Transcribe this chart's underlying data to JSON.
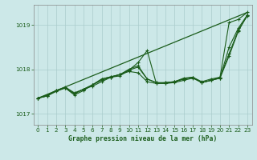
{
  "title": "Graphe pression niveau de la mer (hPa)",
  "background_color": "#cce8e8",
  "grid_color": "#aacccc",
  "line_color": "#1a5c1a",
  "xlim": [
    -0.5,
    23.5
  ],
  "ylim": [
    1016.75,
    1019.45
  ],
  "yticks": [
    1017,
    1018,
    1019
  ],
  "xticks": [
    0,
    1,
    2,
    3,
    4,
    5,
    6,
    7,
    8,
    9,
    10,
    11,
    12,
    13,
    14,
    15,
    16,
    17,
    18,
    19,
    20,
    21,
    22,
    23
  ],
  "straight_line": {
    "x": [
      0,
      23
    ],
    "y": [
      1017.35,
      1019.28
    ]
  },
  "series": [
    {
      "x": [
        0,
        1,
        2,
        3,
        4,
        5,
        6,
        7,
        8,
        9,
        10,
        11,
        12,
        13,
        14,
        15,
        16,
        17,
        18,
        19,
        20,
        21,
        22,
        23
      ],
      "y": [
        1017.35,
        1017.42,
        1017.52,
        1017.6,
        1017.47,
        1017.55,
        1017.65,
        1017.78,
        1017.83,
        1017.88,
        1018.0,
        1018.08,
        1017.78,
        1017.7,
        1017.7,
        1017.72,
        1017.78,
        1017.82,
        1017.72,
        1017.78,
        1017.82,
        1019.05,
        1019.12,
        1019.28
      ]
    },
    {
      "x": [
        0,
        1,
        2,
        3,
        4,
        5,
        6,
        7,
        8,
        9,
        10,
        11,
        12,
        13,
        14,
        15,
        16,
        17,
        18,
        19,
        20,
        21,
        22,
        23
      ],
      "y": [
        1017.35,
        1017.4,
        1017.5,
        1017.58,
        1017.42,
        1017.52,
        1017.65,
        1017.75,
        1017.82,
        1017.88,
        1017.98,
        1018.15,
        1018.42,
        1017.68,
        1017.7,
        1017.72,
        1017.78,
        1017.82,
        1017.7,
        1017.75,
        1017.8,
        1018.5,
        1018.92,
        1019.22
      ]
    },
    {
      "x": [
        0,
        1,
        2,
        3,
        4,
        5,
        6,
        7,
        8,
        9,
        10,
        11,
        12,
        13,
        14,
        15,
        16,
        17,
        18,
        19,
        20,
        21,
        22,
        23
      ],
      "y": [
        1017.35,
        1017.4,
        1017.52,
        1017.58,
        1017.45,
        1017.55,
        1017.62,
        1017.72,
        1017.82,
        1017.85,
        1017.98,
        1018.05,
        1017.78,
        1017.7,
        1017.68,
        1017.72,
        1017.8,
        1017.82,
        1017.7,
        1017.75,
        1017.82,
        1018.35,
        1018.88,
        1019.2
      ]
    },
    {
      "x": [
        0,
        1,
        2,
        3,
        4,
        5,
        6,
        7,
        8,
        9,
        10,
        11,
        12,
        13,
        14,
        15,
        16,
        17,
        18,
        19,
        20,
        21,
        22,
        23
      ],
      "y": [
        1017.35,
        1017.4,
        1017.52,
        1017.58,
        1017.45,
        1017.55,
        1017.65,
        1017.78,
        1017.83,
        1017.88,
        1017.95,
        1017.92,
        1017.72,
        1017.68,
        1017.68,
        1017.7,
        1017.75,
        1017.8,
        1017.7,
        1017.75,
        1017.8,
        1018.3,
        1018.85,
        1019.22
      ]
    }
  ]
}
